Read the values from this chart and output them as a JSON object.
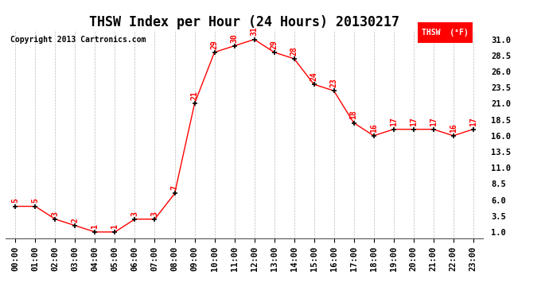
{
  "title": "THSW Index per Hour (24 Hours) 20130217",
  "copyright": "Copyright 2013 Cartronics.com",
  "legend_label": "THSW  (°F)",
  "hours": [
    "00:00",
    "01:00",
    "02:00",
    "03:00",
    "04:00",
    "05:00",
    "06:00",
    "07:00",
    "08:00",
    "09:00",
    "10:00",
    "11:00",
    "12:00",
    "13:00",
    "14:00",
    "15:00",
    "16:00",
    "17:00",
    "18:00",
    "19:00",
    "20:00",
    "21:00",
    "22:00",
    "23:00"
  ],
  "values": [
    5,
    5,
    3,
    2,
    1,
    1,
    3,
    3,
    7,
    21,
    29,
    30,
    31,
    29,
    28,
    24,
    23,
    18,
    16,
    17,
    17,
    17,
    16,
    17
  ],
  "ylim": [
    0.0,
    32.5
  ],
  "yticks": [
    1.0,
    3.5,
    6.0,
    8.5,
    11.0,
    13.5,
    16.0,
    18.5,
    21.0,
    23.5,
    26.0,
    28.5,
    31.0
  ],
  "line_color": "red",
  "marker_color": "black",
  "label_color": "red",
  "background_color": "white",
  "grid_color": "#bbbbbb",
  "title_fontsize": 12,
  "copyright_fontsize": 7,
  "label_fontsize": 7,
  "tick_fontsize": 7.5,
  "legend_bg": "red",
  "legend_fg": "white"
}
